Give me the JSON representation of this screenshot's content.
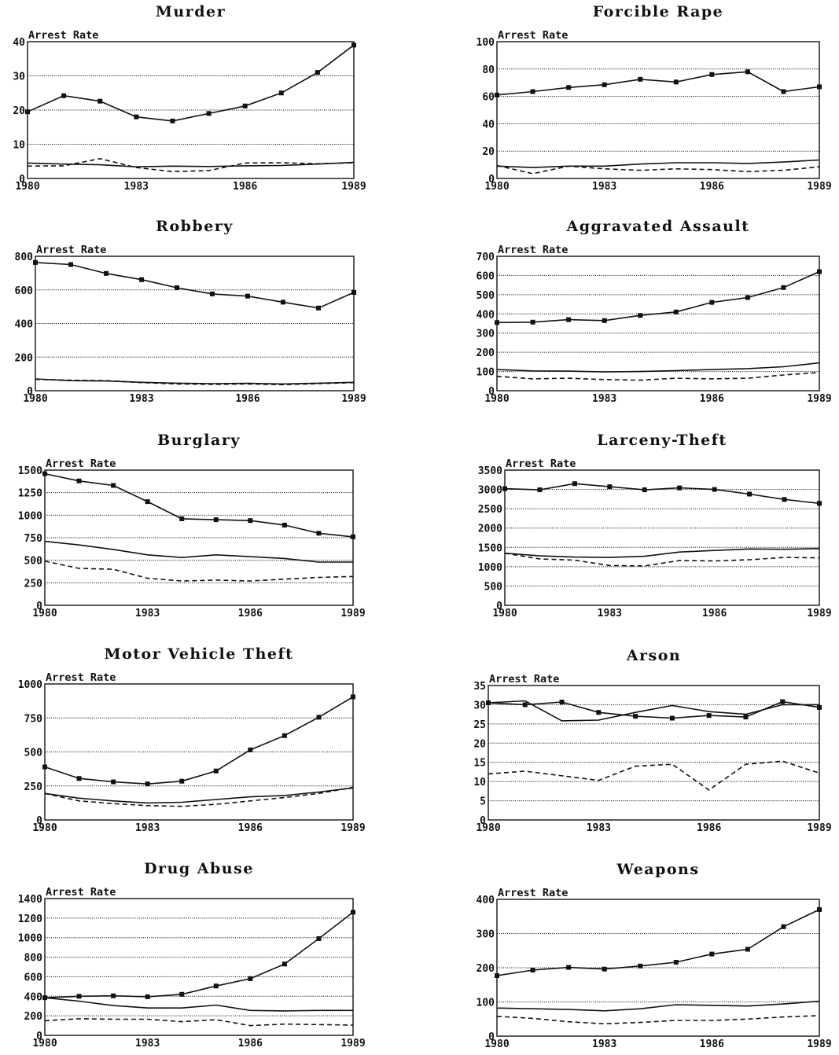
{
  "chart_data": [
    {
      "type": "line",
      "title": "Murder",
      "ylabel": "Arrest Rate",
      "ylim": [
        0,
        40
      ],
      "yticks": [
        0,
        10,
        20,
        30,
        40
      ],
      "x": [
        1980,
        1981,
        1982,
        1983,
        1984,
        1985,
        1986,
        1987,
        1988,
        1989
      ],
      "xticks": [
        1980,
        1983,
        1986,
        1989
      ],
      "grid": true,
      "series": [
        {
          "style": "solid-marker",
          "values": [
            19.5,
            24.2,
            22.6,
            18,
            16.8,
            19,
            21.2,
            25,
            31,
            39
          ]
        },
        {
          "style": "solid",
          "values": [
            4.5,
            4.2,
            4.0,
            3.4,
            3.6,
            3.5,
            3.7,
            3.8,
            4.2,
            4.7
          ]
        },
        {
          "style": "dashed",
          "values": [
            3.6,
            3.7,
            5.8,
            3.2,
            2.0,
            2.3,
            4.5,
            4.6,
            4.3,
            4.6
          ]
        }
      ]
    },
    {
      "type": "line",
      "title": "Forcible Rape",
      "ylabel": "Arrest Rate",
      "ylim": [
        0,
        100
      ],
      "yticks": [
        0,
        20,
        40,
        60,
        80,
        100
      ],
      "x": [
        1980,
        1981,
        1982,
        1983,
        1984,
        1985,
        1986,
        1987,
        1988,
        1989
      ],
      "xticks": [
        1980,
        1983,
        1986,
        1989
      ],
      "grid": true,
      "series": [
        {
          "style": "solid-marker",
          "values": [
            61,
            63.5,
            66.5,
            68.5,
            72.5,
            70.5,
            76,
            78,
            63.5,
            67
          ]
        },
        {
          "style": "solid",
          "values": [
            9,
            8,
            9,
            9,
            10.5,
            11.5,
            11.5,
            11,
            12,
            13.5
          ]
        },
        {
          "style": "dashed",
          "values": [
            9.5,
            3.5,
            9,
            7,
            6,
            7,
            6.5,
            5,
            6,
            8.5
          ]
        }
      ]
    },
    {
      "type": "line",
      "title": "Robbery",
      "ylabel": "Arrest Rate",
      "ylim": [
        0,
        800
      ],
      "yticks": [
        0,
        200,
        400,
        600,
        800
      ],
      "x": [
        1980,
        1981,
        1982,
        1983,
        1984,
        1985,
        1986,
        1987,
        1988,
        1989
      ],
      "xticks": [
        1980,
        1983,
        1986,
        1989
      ],
      "grid": true,
      "series": [
        {
          "style": "solid-marker",
          "values": [
            763,
            751,
            698,
            661,
            613,
            576,
            563,
            527,
            492,
            585
          ]
        },
        {
          "style": "solid",
          "values": [
            70,
            60,
            58,
            50,
            45,
            42,
            44,
            40,
            45,
            50
          ]
        },
        {
          "style": "dashed",
          "values": [
            68,
            62,
            60,
            48,
            40,
            38,
            40,
            36,
            42,
            48
          ]
        }
      ]
    },
    {
      "type": "line",
      "title": "Aggravated Assault",
      "ylabel": "Arrest Rate",
      "ylim": [
        0,
        700
      ],
      "yticks": [
        0,
        100,
        200,
        300,
        400,
        500,
        600,
        700
      ],
      "x": [
        1980,
        1981,
        1982,
        1983,
        1984,
        1985,
        1986,
        1987,
        1988,
        1989
      ],
      "xticks": [
        1980,
        1983,
        1986,
        1989
      ],
      "grid": true,
      "series": [
        {
          "style": "solid-marker",
          "values": [
            355,
            357,
            370,
            365,
            392,
            410,
            460,
            485,
            537,
            620
          ]
        },
        {
          "style": "solid",
          "values": [
            110,
            103,
            102,
            98,
            100,
            105,
            110,
            115,
            125,
            145
          ]
        },
        {
          "style": "dashed",
          "values": [
            75,
            62,
            65,
            58,
            55,
            65,
            62,
            65,
            82,
            95
          ]
        }
      ]
    },
    {
      "type": "line",
      "title": "Burglary",
      "ylabel": "Arrest Rate",
      "ylim": [
        0,
        1500
      ],
      "yticks": [
        0,
        250,
        500,
        750,
        1000,
        1250,
        1500
      ],
      "x": [
        1980,
        1981,
        1982,
        1983,
        1984,
        1985,
        1986,
        1987,
        1988,
        1989
      ],
      "xticks": [
        1980,
        1983,
        1986,
        1989
      ],
      "grid": true,
      "series": [
        {
          "style": "solid-marker",
          "values": [
            1460,
            1380,
            1330,
            1150,
            960,
            950,
            940,
            890,
            800,
            760
          ]
        },
        {
          "style": "solid",
          "values": [
            710,
            670,
            620,
            560,
            530,
            560,
            540,
            520,
            480,
            480
          ]
        },
        {
          "style": "dashed",
          "values": [
            490,
            410,
            400,
            300,
            270,
            280,
            270,
            290,
            310,
            320
          ]
        }
      ]
    },
    {
      "type": "line",
      "title": "Larceny-Theft",
      "ylabel": "Arrest Rate",
      "ylim": [
        0,
        3500
      ],
      "yticks": [
        0,
        500,
        1000,
        1500,
        2000,
        2500,
        3000,
        3500
      ],
      "x": [
        1980,
        1981,
        1982,
        1983,
        1984,
        1985,
        1986,
        1987,
        1988,
        1989
      ],
      "xticks": [
        1980,
        1983,
        1986,
        1989
      ],
      "grid": true,
      "series": [
        {
          "style": "solid-marker",
          "values": [
            3020,
            2990,
            3150,
            3070,
            2990,
            3040,
            3000,
            2880,
            2740,
            2640
          ]
        },
        {
          "style": "solid",
          "values": [
            1350,
            1280,
            1250,
            1240,
            1270,
            1380,
            1420,
            1460,
            1450,
            1470
          ]
        },
        {
          "style": "dashed",
          "values": [
            1350,
            1200,
            1170,
            1030,
            1020,
            1160,
            1150,
            1180,
            1240,
            1230
          ]
        }
      ]
    },
    {
      "type": "line",
      "title": "Motor Vehicle Theft",
      "ylabel": "Arrest Rate",
      "ylim": [
        0,
        1000
      ],
      "yticks": [
        0,
        250,
        500,
        750,
        1000
      ],
      "x": [
        1980,
        1981,
        1982,
        1983,
        1984,
        1985,
        1986,
        1987,
        1988,
        1989
      ],
      "xticks": [
        1980,
        1983,
        1986,
        1989
      ],
      "grid": true,
      "series": [
        {
          "style": "solid-marker",
          "values": [
            390,
            305,
            280,
            265,
            285,
            360,
            515,
            620,
            755,
            905
          ]
        },
        {
          "style": "solid",
          "values": [
            195,
            160,
            140,
            125,
            130,
            150,
            170,
            180,
            205,
            235
          ]
        },
        {
          "style": "dashed",
          "values": [
            195,
            140,
            120,
            105,
            100,
            115,
            140,
            165,
            195,
            240
          ]
        }
      ]
    },
    {
      "type": "line",
      "title": "Arson",
      "ylabel": "Arrest Rate",
      "ylim": [
        0,
        35
      ],
      "yticks": [
        0,
        5,
        10,
        15,
        20,
        25,
        30,
        35
      ],
      "x": [
        1980,
        1981,
        1982,
        1983,
        1984,
        1985,
        1986,
        1987,
        1988,
        1989
      ],
      "xticks": [
        1980,
        1983,
        1986,
        1989
      ],
      "grid": true,
      "series": [
        {
          "style": "solid-marker",
          "values": [
            30.5,
            30,
            30.7,
            28,
            27,
            26.5,
            27.2,
            26.8,
            30.8,
            29.3
          ]
        },
        {
          "style": "solid",
          "values": [
            30.5,
            31,
            25.8,
            26,
            28,
            29.8,
            28.2,
            27.5,
            30,
            30
          ]
        },
        {
          "style": "dashed",
          "values": [
            12,
            12.7,
            11.5,
            10.3,
            14,
            14.5,
            7.8,
            14.5,
            15.3,
            12.2
          ]
        }
      ]
    },
    {
      "type": "line",
      "title": "Drug Abuse",
      "ylabel": "Arrest Rate",
      "ylim": [
        0,
        1400
      ],
      "yticks": [
        0,
        200,
        400,
        600,
        800,
        1000,
        1200,
        1400
      ],
      "x": [
        1980,
        1981,
        1982,
        1983,
        1984,
        1985,
        1986,
        1987,
        1988,
        1989
      ],
      "xticks": [
        1980,
        1983,
        1986,
        1989
      ],
      "grid": true,
      "series": [
        {
          "style": "solid-marker",
          "values": [
            385,
            400,
            405,
            395,
            420,
            505,
            580,
            730,
            990,
            1260
          ]
        },
        {
          "style": "solid",
          "values": [
            385,
            350,
            305,
            280,
            280,
            310,
            255,
            250,
            255,
            255
          ]
        },
        {
          "style": "dashed",
          "values": [
            150,
            170,
            165,
            165,
            140,
            160,
            100,
            115,
            110,
            105
          ]
        }
      ]
    },
    {
      "type": "line",
      "title": "Weapons",
      "ylabel": "Arrest Rate",
      "ylim": [
        0,
        400
      ],
      "yticks": [
        0,
        100,
        200,
        300,
        400
      ],
      "x": [
        1980,
        1981,
        1982,
        1983,
        1984,
        1985,
        1986,
        1987,
        1988,
        1989
      ],
      "xticks": [
        1980,
        1983,
        1986,
        1989
      ],
      "grid": true,
      "series": [
        {
          "style": "solid-marker",
          "values": [
            177,
            193,
            201,
            196,
            205,
            216,
            240,
            254,
            320,
            370
          ]
        },
        {
          "style": "solid",
          "values": [
            82,
            80,
            78,
            74,
            80,
            92,
            90,
            88,
            94,
            102
          ]
        },
        {
          "style": "dashed",
          "values": [
            58,
            52,
            42,
            36,
            40,
            46,
            46,
            50,
            56,
            60
          ]
        }
      ]
    }
  ]
}
